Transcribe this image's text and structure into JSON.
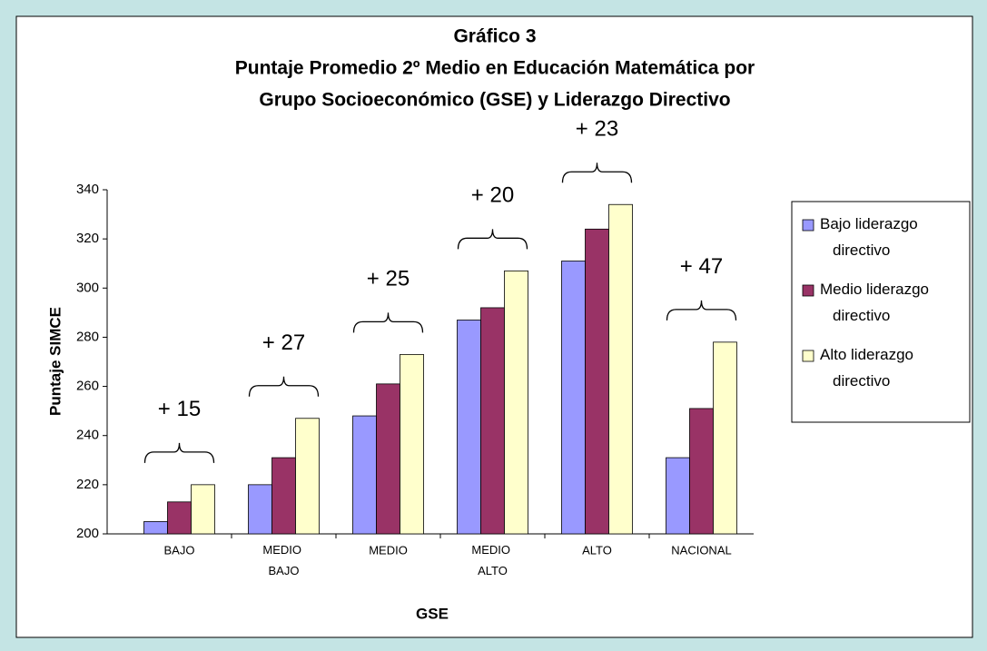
{
  "chart_data": {
    "type": "bar",
    "title": "Gráfico 3",
    "subtitle": [
      "Puntaje Promedio 2º Medio en Educación Matemática por",
      "Grupo Socioeconómico (GSE) y Liderazgo Directivo"
    ],
    "x_label": "GSE",
    "y_label": "Puntaje SIMCE",
    "categories": [
      "BAJO",
      "MEDIO BAJO",
      "MEDIO",
      "MEDIO ALTO",
      "ALTO",
      "NACIONAL"
    ],
    "series": [
      {
        "name": "Bajo liderazgo directivo",
        "color": "#9999ff",
        "values": [
          205,
          220,
          248,
          287,
          311,
          231
        ]
      },
      {
        "name": "Medio liderazgo directivo",
        "color": "#993366",
        "values": [
          213,
          231,
          261,
          292,
          324,
          251
        ]
      },
      {
        "name": "Alto liderazgo directivo",
        "color": "#ffffcc",
        "values": [
          220,
          247,
          273,
          307,
          334,
          278
        ]
      }
    ],
    "annotations": [
      "+ 15",
      "+ 27",
      "+ 25",
      "+ 20",
      "+ 23",
      "+ 47"
    ],
    "ylim": [
      200,
      340
    ],
    "yticks": [
      200,
      220,
      240,
      260,
      280,
      300,
      320,
      340
    ],
    "legend": "right"
  }
}
